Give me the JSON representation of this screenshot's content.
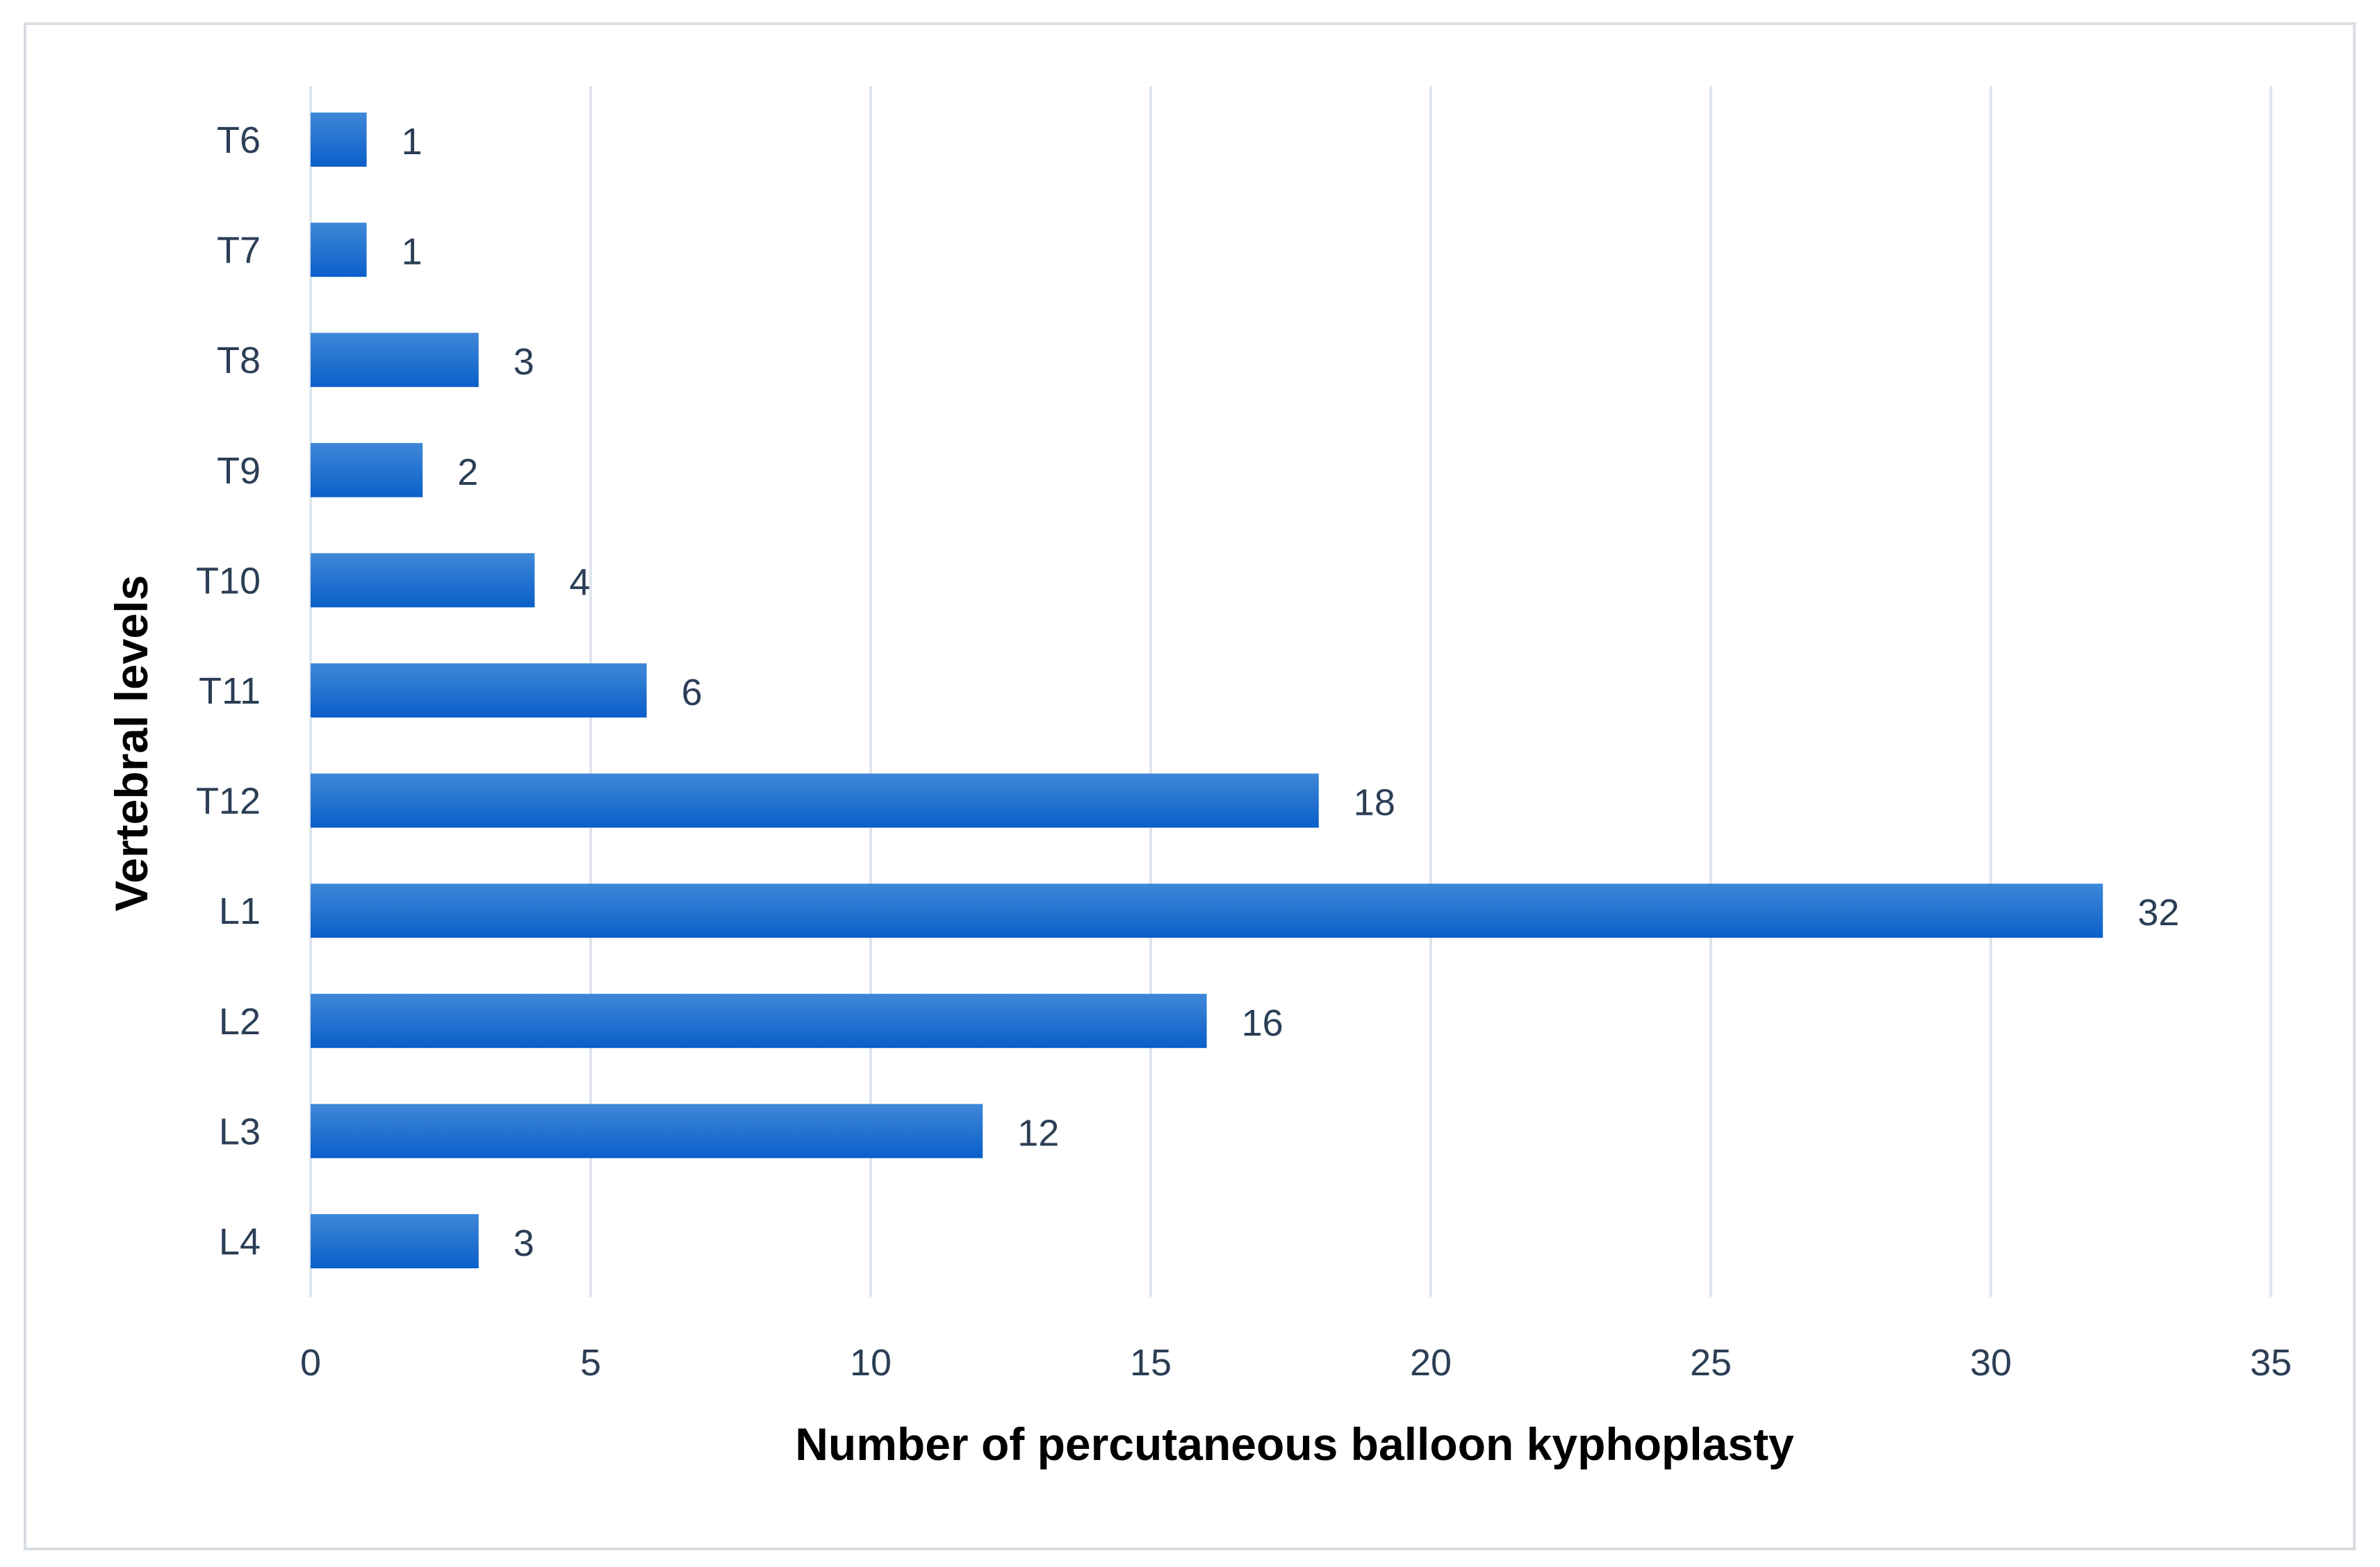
{
  "chart_data": {
    "type": "bar",
    "orientation": "horizontal",
    "title": "",
    "xlabel": "Number of percutaneous balloon kyphoplasty",
    "ylabel": "Vertebral levels",
    "categories": [
      "T6",
      "T7",
      "T8",
      "T9",
      "T10",
      "T11",
      "T12",
      "L1",
      "L2",
      "L3",
      "L4"
    ],
    "values": [
      1,
      1,
      3,
      2,
      4,
      6,
      18,
      32,
      16,
      12,
      3
    ],
    "xlim": [
      0,
      35
    ],
    "xticks": [
      0,
      5,
      10,
      15,
      20,
      25,
      30,
      35
    ],
    "grid": true,
    "legend": "none",
    "data_labels": true,
    "colors": {
      "bar_top": "#3f88d8",
      "bar_bottom": "#0a5fc9",
      "grid": "#dfe5ec",
      "frame": "#d8dde3",
      "text": "#2b3e55"
    }
  }
}
